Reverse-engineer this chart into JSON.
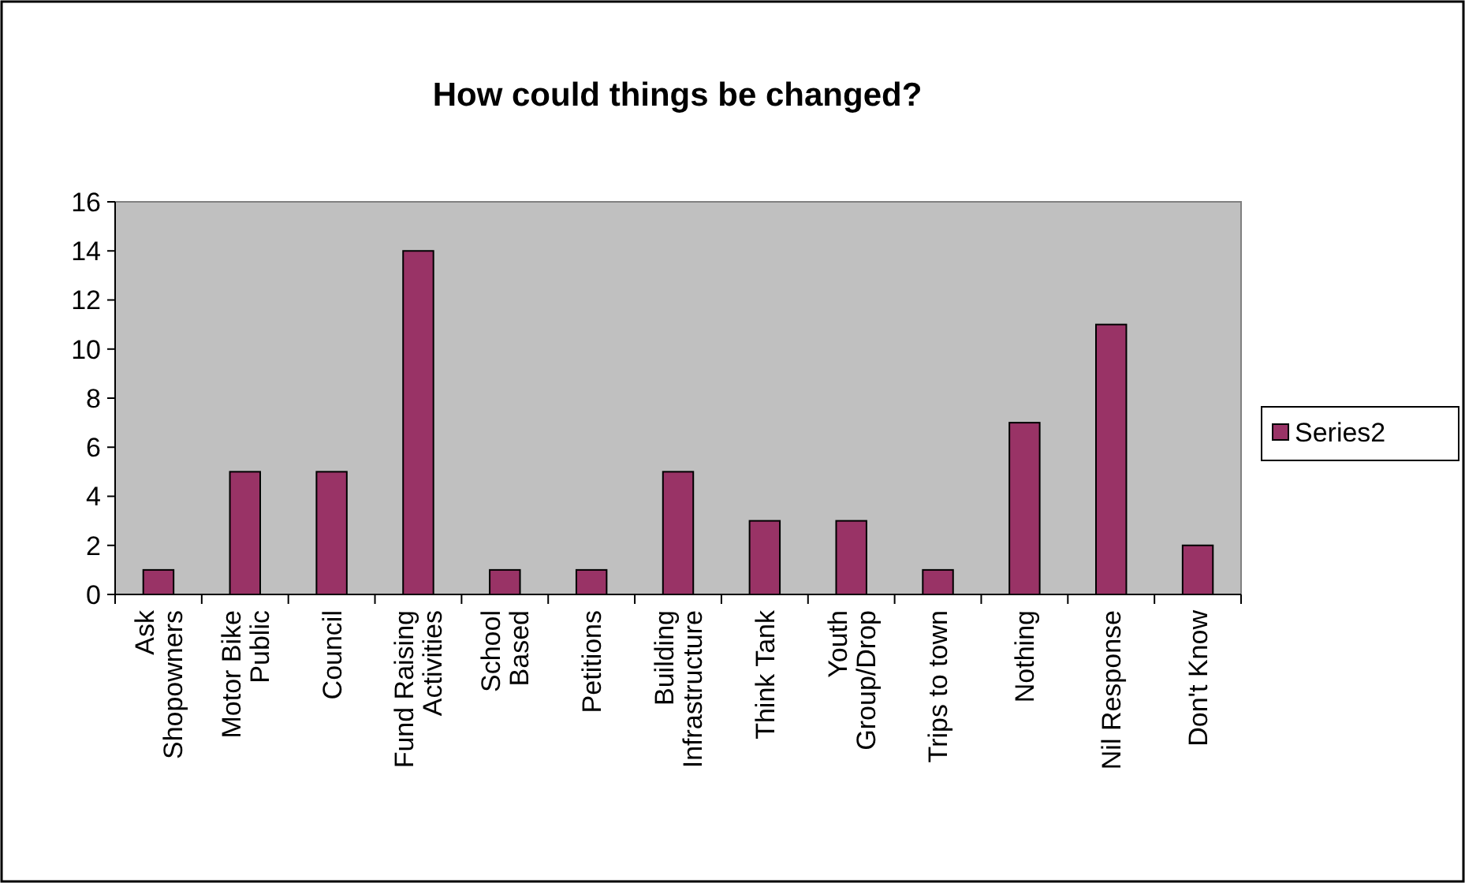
{
  "chart_data": {
    "type": "bar",
    "title": "How could things be changed?",
    "categories": [
      "Ask\nShopowners",
      "Motor Bike\nPublic",
      "Council",
      "Fund Raising\nActivities",
      "School\nBased",
      "Petitions",
      "Building\nInfrastructure",
      "Think Tank",
      "Youth\nGroup/Drop",
      "Trips to town",
      "Nothing",
      "Nil Response",
      "Don't Know"
    ],
    "series": [
      {
        "name": "Series2",
        "color": "#993366",
        "values": [
          1,
          5,
          5,
          14,
          1,
          1,
          5,
          3,
          3,
          1,
          7,
          11,
          2
        ]
      }
    ],
    "ylim": [
      0,
      16
    ],
    "yticks": [
      0,
      2,
      4,
      6,
      8,
      10,
      12,
      14,
      16
    ],
    "grid": false,
    "legend": "right"
  }
}
